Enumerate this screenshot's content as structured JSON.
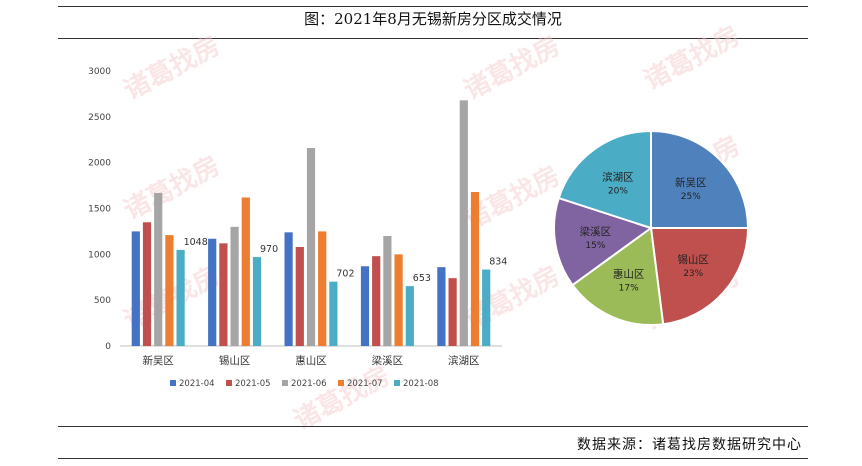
{
  "title": "图：2021年8月无锡新房分区成交情况",
  "source": "数据来源：诸葛找房数据研究中心",
  "watermark_text": "诸葛找房",
  "chart_data": [
    {
      "type": "bar",
      "categories": [
        "新吴区",
        "锡山区",
        "惠山区",
        "梁溪区",
        "滨湖区"
      ],
      "ylim": [
        0,
        3000
      ],
      "yticks": [
        0,
        500,
        1000,
        1500,
        2000,
        2500,
        3000
      ],
      "grid": false,
      "legend_position": "bottom",
      "series": [
        {
          "name": "2021-04",
          "color": "#4472C4",
          "values": [
            1250,
            1170,
            1240,
            870,
            860
          ]
        },
        {
          "name": "2021-05",
          "color": "#C0504D",
          "values": [
            1350,
            1120,
            1080,
            980,
            740
          ]
        },
        {
          "name": "2021-06",
          "color": "#A5A5A5",
          "values": [
            1670,
            1300,
            2160,
            1200,
            2680
          ]
        },
        {
          "name": "2021-07",
          "color": "#ED7D31",
          "values": [
            1210,
            1620,
            1250,
            1000,
            1680
          ]
        },
        {
          "name": "2021-08",
          "color": "#4BACC6",
          "values": [
            1048,
            970,
            702,
            653,
            834
          ]
        }
      ],
      "data_labels": [
        "1048",
        "970",
        "702",
        "653",
        "834"
      ]
    },
    {
      "type": "pie",
      "slices": [
        {
          "label": "新吴区",
          "value": 25,
          "percent_label": "25%",
          "color": "#4F81BD"
        },
        {
          "label": "锡山区",
          "value": 23,
          "percent_label": "23%",
          "color": "#C0504D"
        },
        {
          "label": "惠山区",
          "value": 17,
          "percent_label": "17%",
          "color": "#9BBB59"
        },
        {
          "label": "梁溪区",
          "value": 15,
          "percent_label": "15%",
          "color": "#8064A2"
        },
        {
          "label": "滨湖区",
          "value": 20,
          "percent_label": "20%",
          "color": "#4BACC6"
        }
      ]
    }
  ]
}
